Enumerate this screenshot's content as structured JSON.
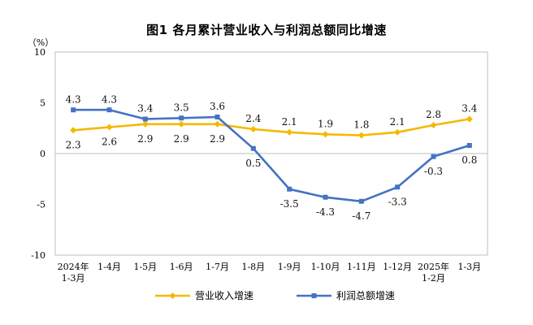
{
  "chart_data": {
    "type": "line",
    "title": "图1  各月累计营业收入与利润总额同比增速",
    "yunit": "（%）",
    "ylim": [
      -10,
      10
    ],
    "yticks": [
      "10",
      "5",
      "0",
      "-5",
      "-10"
    ],
    "ytick_values": [
      10,
      5,
      0,
      -5,
      -10
    ],
    "categories": [
      [
        "2024年",
        "1-3月"
      ],
      [
        "1-4月"
      ],
      [
        "1-5月"
      ],
      [
        "1-6月"
      ],
      [
        "1-7月"
      ],
      [
        "1-8月"
      ],
      [
        "1-9月"
      ],
      [
        "1-10月"
      ],
      [
        "1-11月"
      ],
      [
        "1-12月"
      ],
      [
        "2025年",
        "1-2月"
      ],
      [
        "1-3月"
      ]
    ],
    "series": [
      {
        "name": "营业收入增速",
        "color": "#F5B800",
        "marker": "diamond",
        "values": [
          2.3,
          2.6,
          2.9,
          2.9,
          2.9,
          2.4,
          2.1,
          1.9,
          1.8,
          2.1,
          2.8,
          3.4
        ],
        "labels": [
          "2.3",
          "2.6",
          "2.9",
          "2.9",
          "2.9",
          "2.4",
          "2.1",
          "1.9",
          "1.8",
          "2.1",
          "2.8",
          "3.4"
        ]
      },
      {
        "name": "利润总额增速",
        "color": "#4472C4",
        "marker": "square",
        "values": [
          4.3,
          4.3,
          3.4,
          3.5,
          3.6,
          0.5,
          -3.5,
          -4.3,
          -4.7,
          -3.3,
          -0.3,
          0.8
        ],
        "labels": [
          "4.3",
          "4.3",
          "3.4",
          "3.5",
          "3.6",
          "0.5",
          "-3.5",
          "-4.3",
          "-4.7",
          "-3.3",
          "-0.3",
          "0.8"
        ]
      }
    ],
    "grid": false,
    "legend_position": "bottom"
  }
}
